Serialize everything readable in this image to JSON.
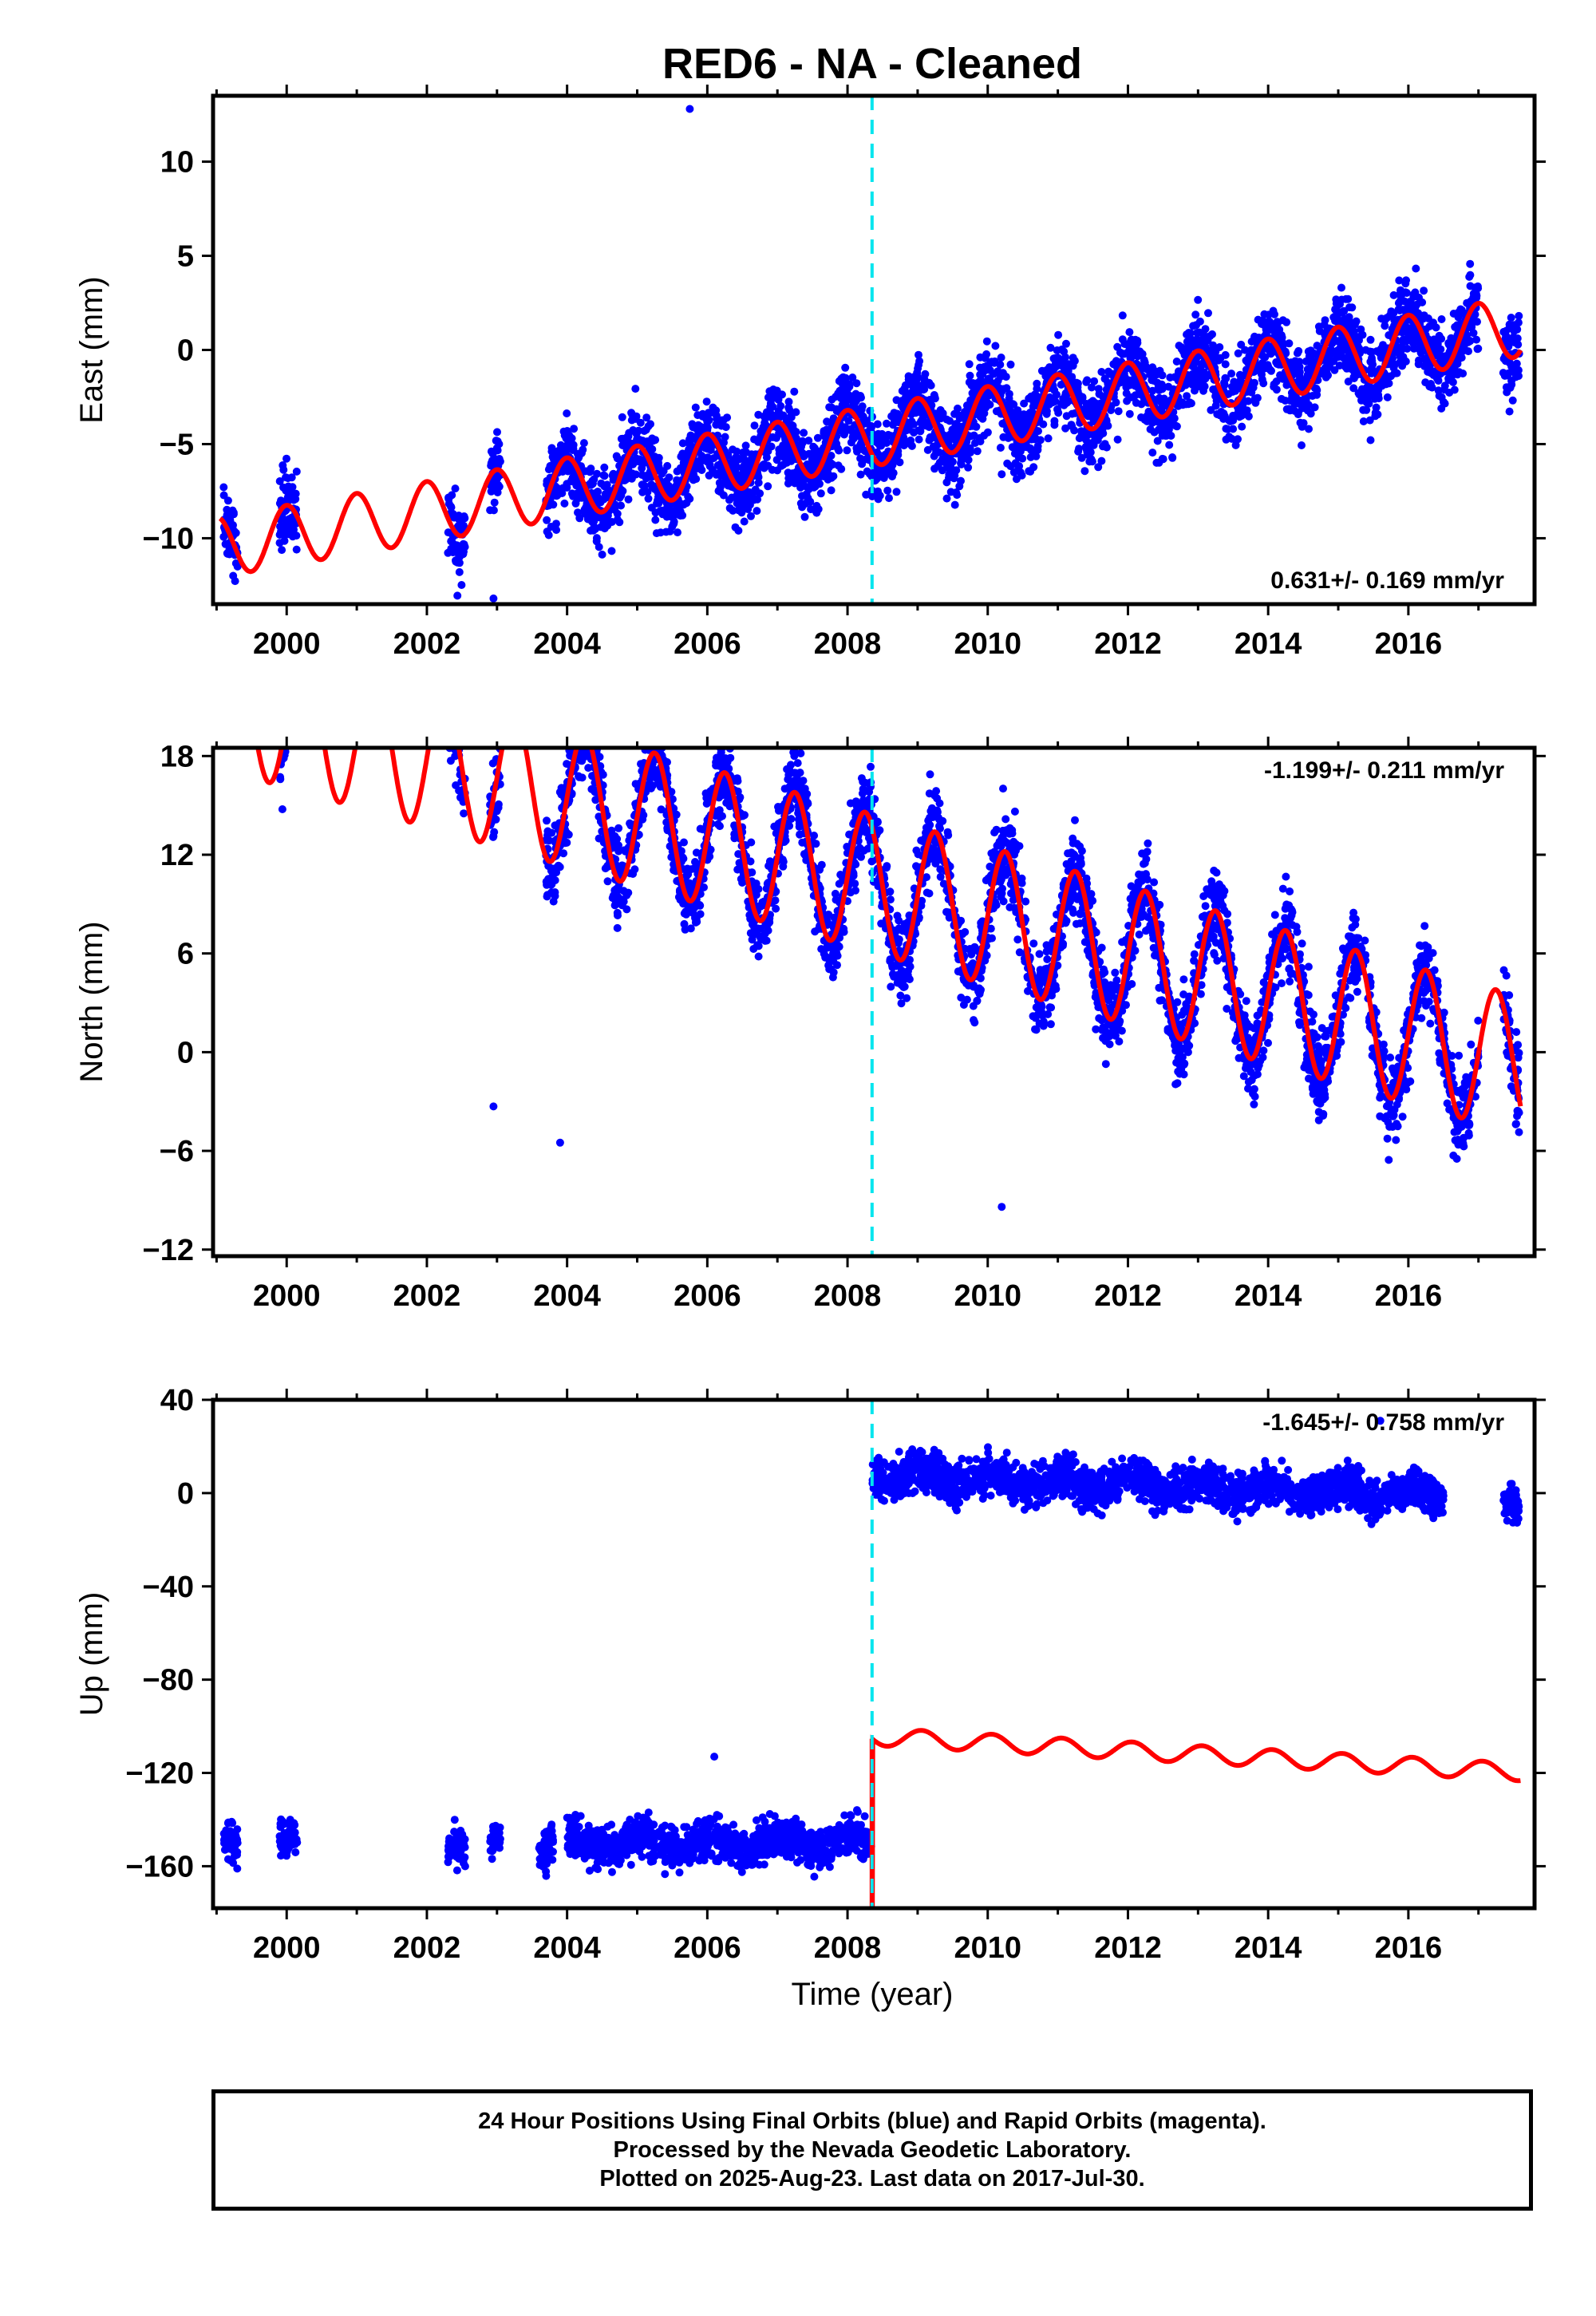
{
  "chart_data": {
    "type": "scatter",
    "title": "RED6  - NA - Cleaned",
    "xlabel": "Time (year)",
    "x_ticks": [
      "2000",
      "2002",
      "2004",
      "2006",
      "2008",
      "2010",
      "2012",
      "2014",
      "2016"
    ],
    "xlim": [
      1998.95,
      2017.8
    ],
    "event_line_x": 2008.35,
    "event_line_color": "#00e5ee",
    "point_color": "#0000ff",
    "model_color": "#ff0000",
    "panels": [
      {
        "id": "east",
        "ylabel": "East (mm)",
        "ylim": [
          -13.5,
          13.5
        ],
        "y_ticks": [
          10,
          5,
          0,
          -5,
          -10
        ],
        "rate_label": "0.631+/- 0.169 mm/yr",
        "model": {
          "offset": -4.58,
          "rate": 0.631,
          "amp": 1.6,
          "phase": 1.6,
          "step": 0
        },
        "data_segments": [
          [
            1999.1,
            1999.3
          ],
          [
            1999.9,
            2000.15
          ],
          [
            2002.3,
            2002.55
          ],
          [
            2002.9,
            2003.05
          ],
          [
            2003.7,
            2017.0
          ],
          [
            2017.35,
            2017.58
          ]
        ],
        "noise": 1.5,
        "outliers": [
          [
            2005.75,
            12.8
          ],
          [
            2002.95,
            -13.2
          ],
          [
            1999.25,
            -10.5
          ],
          [
            2010.2,
            -6.6
          ]
        ]
      },
      {
        "id": "north",
        "ylabel": "North (mm)",
        "ylim": [
          -12.4,
          18.5
        ],
        "y_ticks": [
          18,
          12,
          6,
          0,
          -6,
          -12
        ],
        "rate_label": "-1.199+/- 0.211 mm/yr",
        "model": {
          "offset": 10.27,
          "rate": -1.199,
          "amp": 4.2,
          "phase": 0.0,
          "step": 0
        },
        "data_segments": [
          [
            1999.05,
            1999.3
          ],
          [
            1999.9,
            2000.15
          ],
          [
            2002.3,
            2002.55
          ],
          [
            2002.9,
            2003.05
          ],
          [
            2003.7,
            2017.0
          ],
          [
            2017.35,
            2017.58
          ]
        ],
        "noise": 1.8,
        "outliers": [
          [
            2002.95,
            -3.3
          ],
          [
            2003.9,
            -5.5
          ],
          [
            2010.2,
            -9.4
          ]
        ]
      },
      {
        "id": "up",
        "ylabel": "Up (mm)",
        "ylim": [
          -178,
          40
        ],
        "y_ticks": [
          40,
          0,
          -40,
          -80,
          -120,
          -160
        ],
        "rate_label": "-1.645+/- 0.758 mm/yr",
        "model": {
          "offset": -104.4,
          "rate": -1.645,
          "amp": 3.8,
          "phase": 1.2,
          "step": 130
        },
        "step_x": 2008.35,
        "data_segments": [
          [
            1999.1,
            1999.3
          ],
          [
            1999.9,
            2000.15
          ],
          [
            2002.3,
            2002.55
          ],
          [
            2002.9,
            2003.05
          ],
          [
            2003.6,
            2003.8
          ],
          [
            2004.0,
            2007.35
          ],
          [
            2007.35,
            2016.5
          ],
          [
            2017.35,
            2017.58
          ]
        ],
        "data_offset_pre": -150,
        "data_offset_post": 8,
        "noise": 6,
        "outliers": [
          [
            2006.1,
            -113
          ],
          [
            2015.6,
            31
          ]
        ]
      }
    ]
  },
  "footer": {
    "line1": "24 Hour Positions Using Final Orbits (blue) and Rapid Orbits (magenta).",
    "line2": "Processed by the Nevada Geodetic Laboratory.",
    "line3": "Plotted on 2025-Aug-23. Last data on 2017-Jul-30."
  }
}
